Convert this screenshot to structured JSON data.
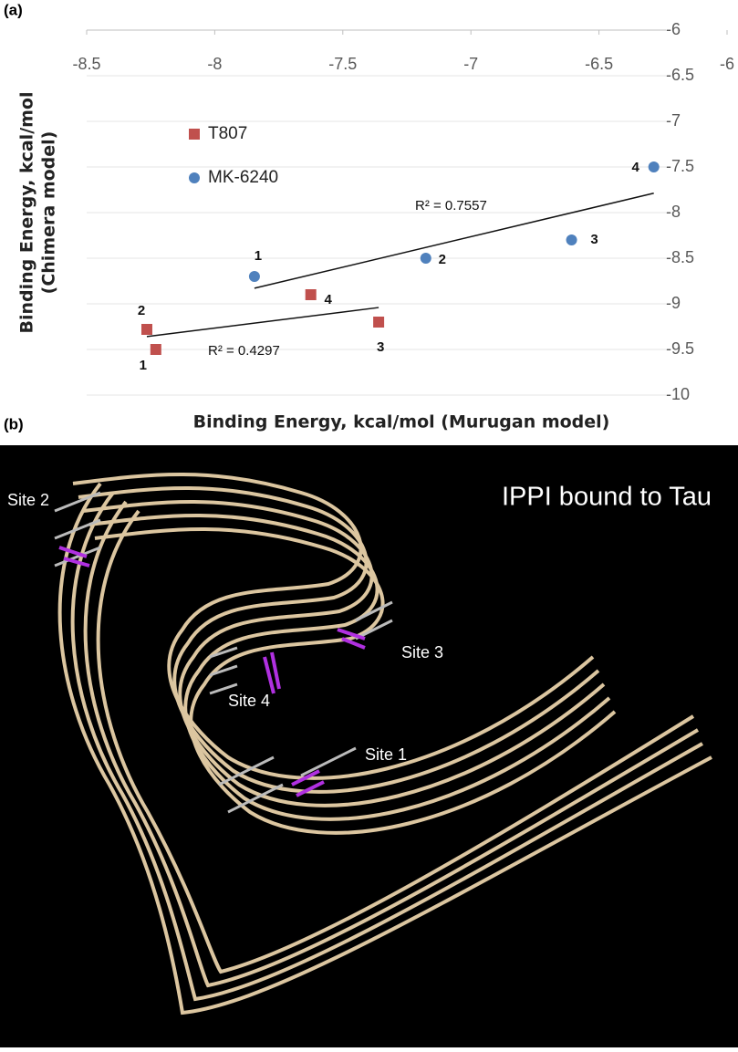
{
  "panels": [
    "(a)",
    "(b)"
  ],
  "chart_data": {
    "type": "scatter",
    "xlabel": "Binding Energy, kcal/mol (Murugan model)",
    "ylabel": [
      "Binding Energy, kcal/mol",
      "(Chimera model)"
    ],
    "xlim": [
      -8.5,
      -6
    ],
    "xticks": [
      -8.5,
      -8,
      -7.5,
      -7,
      -6.5,
      -6
    ],
    "ylim": [
      -10,
      -6
    ],
    "yticks": [
      -6,
      -6.5,
      -7,
      -7.5,
      -8,
      -8.5,
      -9,
      -9.5,
      -10
    ],
    "grid": true,
    "legend": "upper-left",
    "series": [
      {
        "name": "T807",
        "color": "#c0504d",
        "marker": "square",
        "x": [
          -8.23,
          -8.265,
          -7.36,
          -7.625
        ],
        "values": [
          -9.5,
          -9.28,
          -9.2,
          -8.9
        ],
        "labels": [
          "1",
          "2",
          "3",
          "4"
        ],
        "r2_label": "R² = 0.4297"
      },
      {
        "name": "MK-6240",
        "color": "#4f81bd",
        "marker": "circle",
        "x": [
          -7.845,
          -7.176,
          -6.607,
          -6.286
        ],
        "values": [
          -8.7,
          -8.5,
          -8.3,
          -7.5
        ],
        "labels": [
          "1",
          "2",
          "3",
          "4"
        ],
        "r2_label": "R² = 0.7557"
      }
    ]
  },
  "image": {
    "title": "IPPI bound to Tau",
    "sites": [
      "Site 1",
      "Site 2",
      "Site 3",
      "Site 4"
    ]
  }
}
